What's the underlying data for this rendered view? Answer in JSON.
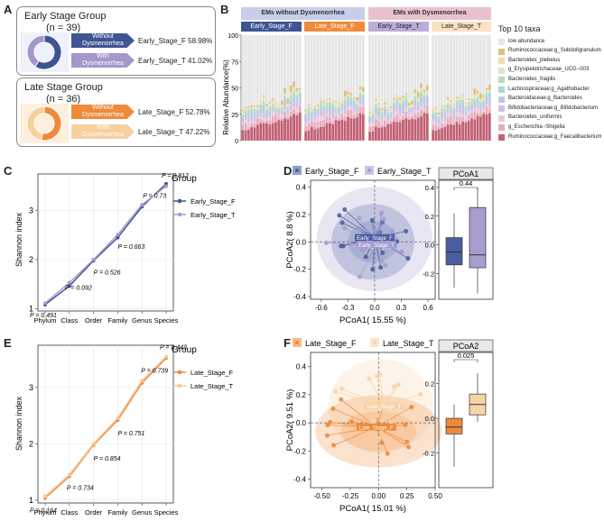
{
  "panel_labels": {
    "a": "A",
    "b": "B",
    "c": "C",
    "d": "D",
    "e": "E",
    "f": "F"
  },
  "panel_a": {
    "early": {
      "title": "Early Stage Group",
      "n": "(n = 39)",
      "arrow_top": [
        "Without",
        "Dysmenorrhea"
      ],
      "arrow_bottom": [
        "With",
        "Dysmenorrhea"
      ],
      "value_top": "Early_Stage_F 58.98%",
      "value_bottom": "Early_Stage_T 41.02%",
      "fraction_f": 58.98,
      "color_f": "#3f5493",
      "color_t": "#a596cc"
    },
    "late": {
      "title": "Late Stage Group",
      "n": "(n = 36)",
      "arrow_top": [
        "Without",
        "Dysmenorrhea"
      ],
      "arrow_bottom": [
        "With",
        "Dysmenorrhea"
      ],
      "value_top": "Late_Stage_F 52.78%",
      "value_bottom": "Late_Stage_T 47.22%",
      "fraction_f": 52.78,
      "color_f": "#ef8a3a",
      "color_t": "#f8cf9e"
    }
  },
  "panel_b": {
    "header_left": "EMs without Dysmenorrhea",
    "header_right": "EMs with Dysmenorrhea",
    "groups": [
      "Early_Stage_F",
      "Late_Stage_F",
      "Early_Stage_T",
      "Late_Stage_T"
    ],
    "group_colors": [
      "#3f5493",
      "#ef8a3a",
      "#b9addb",
      "#fbe2c2"
    ],
    "ylabel": "Relative Abundance(%)",
    "yticks": [
      "0",
      "25",
      "50",
      "75",
      "100"
    ],
    "legend_title": "Top 10 taxa",
    "taxa": [
      {
        "name": "low abundance",
        "color": "#e6e6e6"
      },
      {
        "name": "Ruminococcaceae;g_Subdoligranulum",
        "color": "#d9c27a"
      },
      {
        "name": "Bacteroides_plebeius",
        "color": "#efdcae"
      },
      {
        "name": "g_Erysipelotrichaceae_UCG−003",
        "color": "#dfe6c8"
      },
      {
        "name": "Bacteroides_fragilis",
        "color": "#b9dcbf"
      },
      {
        "name": "Lachnospiraceae;g_Agathobacter",
        "color": "#a9d8d6"
      },
      {
        "name": "Bacteroidaceae;g_Bacteroides",
        "color": "#bcc8e6"
      },
      {
        "name": "Bifidobacteriaceae;g_Bifidobacterium",
        "color": "#d2c2e2"
      },
      {
        "name": "Bacteroides_uniformis",
        "color": "#ecc9dc"
      },
      {
        "name": "g_Escherichia−Shigella",
        "color": "#e6aebd"
      },
      {
        "name": "Ruminococcaceae;g_Faecalibacterium",
        "color": "#c26175"
      }
    ]
  },
  "panel_c": {
    "chart_data": {
      "type": "line",
      "categories": [
        "Phylum",
        "Class",
        "Order",
        "Family",
        "Genus",
        "Species"
      ],
      "series": [
        {
          "name": "Early_Stage_F",
          "values": [
            1.08,
            1.46,
            1.98,
            2.45,
            3.08,
            3.55
          ],
          "color": "#3f5493"
        },
        {
          "name": "Early_Stage_T",
          "values": [
            1.11,
            1.53,
            2.0,
            2.51,
            3.12,
            3.5
          ],
          "color": "#a79bd0"
        }
      ],
      "ylabel": "Shannon index",
      "yticks": [
        "1",
        "2",
        "3"
      ],
      "ylim": [
        0.95,
        3.75
      ],
      "pvalues": [
        "P = 0.491",
        "P = 0.092",
        "P = 0.526",
        "P = 0.663",
        "P = 0.73",
        "P = 0.812"
      ],
      "legend_title": "Group"
    }
  },
  "panel_d": {
    "legend": [
      "Early_Stage_F",
      "Early_Stage_T"
    ],
    "colors": [
      "#4a5fa0",
      "#a79bd0"
    ],
    "xlabel": "PCoA1( 15.55 %)",
    "ylabel": "PCoA2( 8.8 %)",
    "xticks": [
      "-0.6",
      "-0.3",
      "0.0",
      "0.3",
      "0.6"
    ],
    "yticks": [
      "0.4",
      "0.2",
      "0.0",
      "-0.2",
      "-0.4"
    ],
    "centroid_f": "Early_Stage_F",
    "centroid_t": "Early_Stage_T",
    "box_title": "PCoA1",
    "box_p": "0.44"
  },
  "panel_e": {
    "chart_data": {
      "type": "line",
      "categories": [
        "Phylum",
        "Class",
        "Order",
        "Family",
        "Genus",
        "Species"
      ],
      "series": [
        {
          "name": "Late_Stage_F",
          "values": [
            1.04,
            1.42,
            1.98,
            2.42,
            3.08,
            3.52
          ],
          "color": "#ef8a3a"
        },
        {
          "name": "Late_Stage_T",
          "values": [
            1.07,
            1.45,
            2.0,
            2.46,
            3.12,
            3.55
          ],
          "color": "#f9c89a"
        }
      ],
      "ylabel": "Shannon index",
      "yticks": [
        "1",
        "2",
        "3"
      ],
      "ylim": [
        0.95,
        3.75
      ],
      "pvalues": [
        "P = 0.164",
        "P = 0.734",
        "P = 0.854",
        "P = 0.751",
        "P = 0.739",
        "P = 0.443"
      ],
      "legend_title": "Group"
    }
  },
  "panel_f": {
    "legend": [
      "Late_Stage_F",
      "Late_Stage_T"
    ],
    "colors": [
      "#ef8a3a",
      "#f8d3a8"
    ],
    "xlabel": "PCoA1( 15.01 %)",
    "ylabel": "PCoA2( 9.51 %)",
    "xticks": [
      "-0.50",
      "-0.25",
      "0.00",
      "0.25",
      "0.50"
    ],
    "yticks": [
      "0.4",
      "0.2",
      "0.0",
      "-0.2",
      "-0.4"
    ],
    "centroid_f": "Late_Stage_F",
    "centroid_t": "Late_Stage_T",
    "box_title": "PCoA2",
    "box_p": "0.025"
  }
}
